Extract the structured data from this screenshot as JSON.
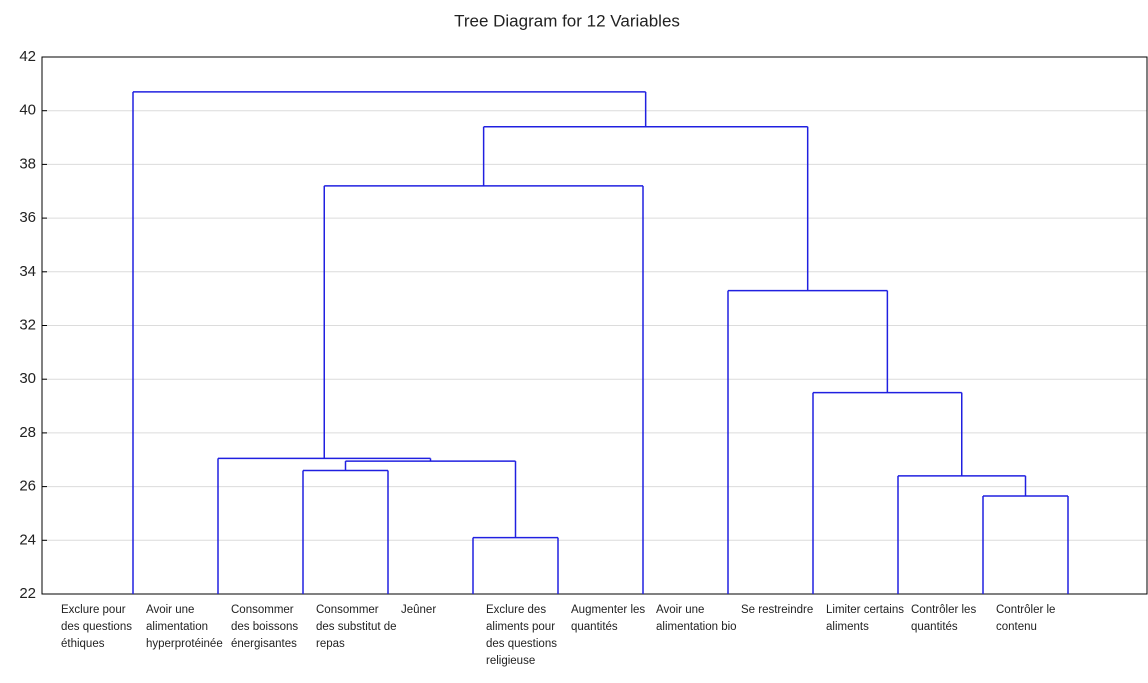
{
  "chart_data": {
    "type": "dendrogram",
    "title": "Tree Diagram for 12 Variables",
    "leaves": [
      "Exclure pour des questions éthiques",
      "Avoir une alimentation hyperprotéinée",
      "Consommer des boissons énergisantes",
      "Consommer des substitut de repas",
      "Jeûner",
      "Exclure des aliments pour des questions religieuse",
      "Augmenter les quantités",
      "Avoir une alimentation bio",
      "Se restreindre",
      "Limiter certains aliments",
      "Contrôler les quantités",
      "Contrôler le contenu"
    ],
    "merges": [
      {
        "a": 10,
        "b": 11,
        "height": 25.65
      },
      {
        "a": 9,
        "b": 12,
        "height": 26.4
      },
      {
        "a": 8,
        "b": 13,
        "height": 29.5
      },
      {
        "a": 7,
        "b": 14,
        "height": 33.3
      },
      {
        "a": 4,
        "b": 5,
        "height": 24.1
      },
      {
        "a": 2,
        "b": 3,
        "height": 26.6
      },
      {
        "a": 17,
        "b": 16,
        "height": 26.95
      },
      {
        "a": 1,
        "b": 18,
        "height": 27.05
      },
      {
        "a": 19,
        "b": 6,
        "height": 37.2
      },
      {
        "a": 20,
        "b": 15,
        "height": 39.4
      },
      {
        "a": 0,
        "b": 21,
        "height": 40.7
      }
    ],
    "color": "#2020e0",
    "ylim": [
      22,
      42
    ],
    "yticks": [
      22,
      24,
      26,
      28,
      30,
      32,
      34,
      36,
      38,
      40,
      42
    ],
    "grid": true
  }
}
